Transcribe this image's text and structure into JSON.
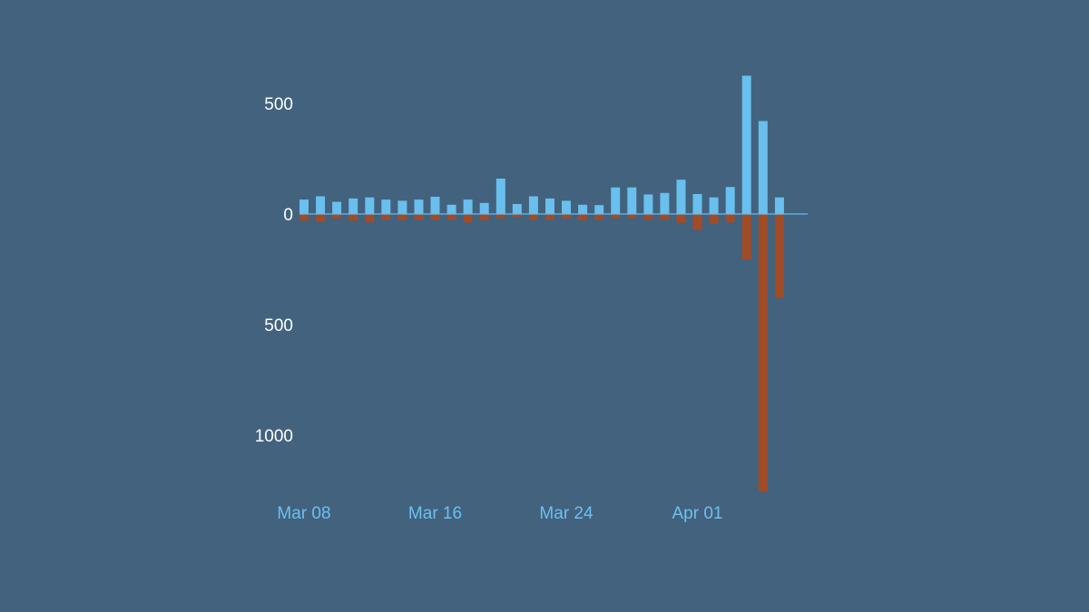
{
  "chart_data": {
    "type": "bar",
    "orientation": "diverging",
    "colors": {
      "background": "#42627e",
      "positive": "#69bfee",
      "negative": "#a24b27",
      "y_tick_text": "#ffffff",
      "x_tick_text": "#6cc0ef"
    },
    "x": [
      "2020-03-08",
      "2020-03-09",
      "2020-03-10",
      "2020-03-11",
      "2020-03-12",
      "2020-03-13",
      "2020-03-14",
      "2020-03-15",
      "2020-03-16",
      "2020-03-17",
      "2020-03-18",
      "2020-03-19",
      "2020-03-20",
      "2020-03-21",
      "2020-03-22",
      "2020-03-23",
      "2020-03-24",
      "2020-03-25",
      "2020-03-26",
      "2020-03-27",
      "2020-03-28",
      "2020-03-29",
      "2020-03-30",
      "2020-03-31",
      "2020-04-01",
      "2020-04-02",
      "2020-04-03",
      "2020-04-04",
      "2020-04-05",
      "2020-04-06",
      "2020-04-07"
    ],
    "series": [
      {
        "color": "#69bfee",
        "values": [
          65,
          80,
          55,
          70,
          75,
          65,
          60,
          65,
          78,
          42,
          65,
          50,
          160,
          45,
          80,
          70,
          60,
          42,
          40,
          120,
          120,
          88,
          95,
          155,
          90,
          75,
          122,
          625,
          420,
          75,
          0
        ]
      },
      {
        "color": "#a24b27",
        "values": [
          -30,
          -35,
          -20,
          -30,
          -38,
          -25,
          -28,
          -25,
          -25,
          -25,
          -38,
          -28,
          -20,
          -15,
          -25,
          -25,
          -20,
          -28,
          -25,
          -20,
          -20,
          -25,
          -25,
          -40,
          -72,
          -45,
          -38,
          -205,
          -1255,
          -380,
          0
        ]
      }
    ],
    "y_ticks": [
      {
        "value": 500,
        "label": "500"
      },
      {
        "value": 0,
        "label": "0"
      },
      {
        "value": -500,
        "label": "500"
      },
      {
        "value": -1000,
        "label": "1000"
      }
    ],
    "x_ticks": [
      {
        "value": "2020-03-08",
        "label": "Mar 08"
      },
      {
        "value": "2020-03-16",
        "label": "Mar 16"
      },
      {
        "value": "2020-03-24",
        "label": "Mar 24"
      },
      {
        "value": "2020-04-01",
        "label": "Apr 01"
      }
    ],
    "title": "",
    "xlabel": "",
    "ylabel": "",
    "ylim": [
      -1300,
      650
    ],
    "grid": false,
    "legend": "none"
  }
}
